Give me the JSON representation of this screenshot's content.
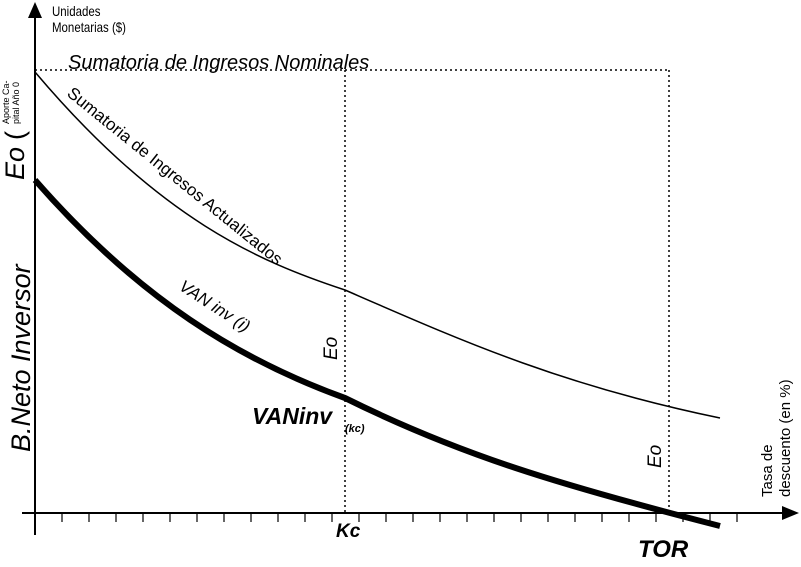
{
  "y_axis_label": [
    "Unidades",
    "Monetarias ($)"
  ],
  "x_axis_label": [
    "Tasa de",
    "descuento (en %)"
  ],
  "left_labels": {
    "eo_main": "Eo",
    "eo_paren_open": "(",
    "eo_sub": [
      "Aporte Ca-",
      "pital Año 0"
    ],
    "beneficio": "B.Neto Inversor"
  },
  "curve_labels": {
    "nominal": "Sumatoria de Ingresos Nominales",
    "actualizados": "Sumatoria de Ingresos Actualizados",
    "van_inv": "VAN inv (i)",
    "vaninv_kc_main": "VANinv",
    "vaninv_kc_sub": "(kc)",
    "eo_at_kc": "Eo",
    "eo_at_tor": "Eo"
  },
  "x_markers": {
    "kc": "Kc",
    "tor": "TOR"
  },
  "colors": {
    "line": "#000000",
    "background": "#ffffff"
  }
}
